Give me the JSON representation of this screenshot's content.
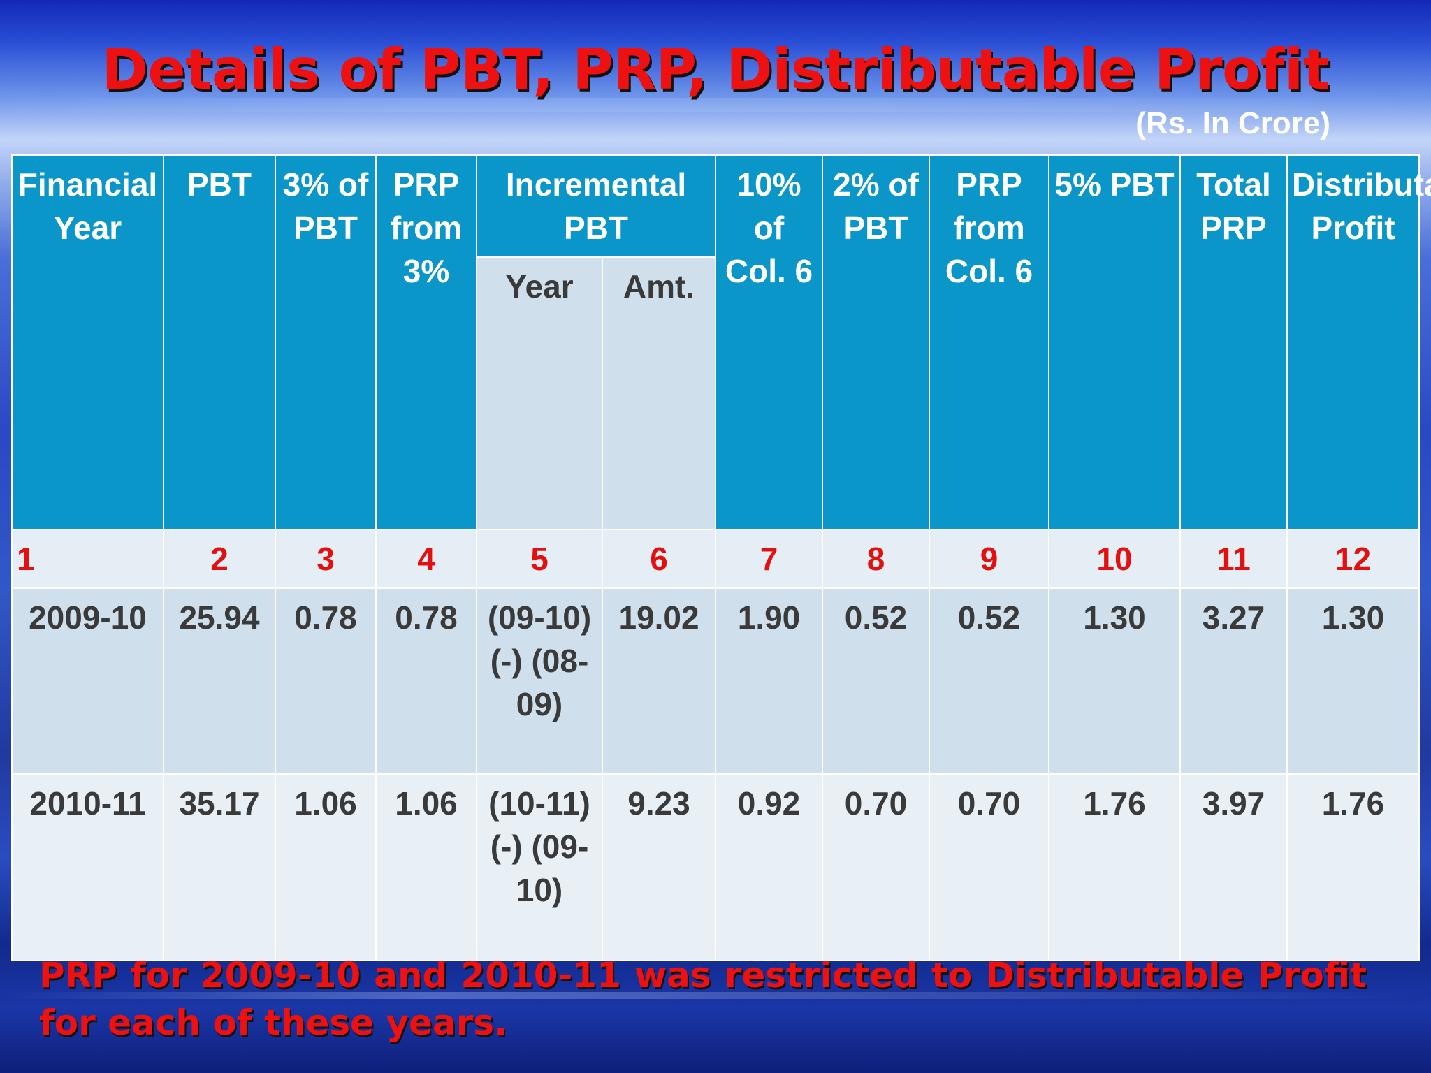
{
  "title": "Details of PBT, PRP, Distributable Profit",
  "unit": "(Rs. In Crore)",
  "table": {
    "headers": {
      "financial_year": "Financial Year",
      "pbt": "PBT",
      "pct3_pbt": "3% of PBT",
      "prp_3pct": "PRP from 3%",
      "incremental_pbt": "Incremental PBT",
      "incremental_year": "Year",
      "incremental_amt": "Amt.",
      "pct10_col6": "10% of Col. 6",
      "pct2_pbt": "2% of PBT",
      "prp_col6": "PRP from Col. 6",
      "pct5_pbt": "5% PBT",
      "total_prp": "Total PRP",
      "distributable_profit": "Distributable Profit"
    },
    "column_numbers": [
      "1",
      "2",
      "3",
      "4",
      "5",
      "6",
      "7",
      "8",
      "9",
      "10",
      "11",
      "12"
    ],
    "rows": [
      {
        "financial_year": "2009-10",
        "pbt": "25.94",
        "pct3_pbt": "0.78",
        "prp_3pct": "0.78",
        "incremental_year": "(09-10) (-) (08-09)",
        "incremental_amt": "19.02",
        "pct10_col6": "1.90",
        "pct2_pbt": "0.52",
        "prp_col6": "0.52",
        "pct5_pbt": "1.30",
        "total_prp": "3.27",
        "distributable_profit": "1.30"
      },
      {
        "financial_year": "2010-11",
        "pbt": "35.17",
        "pct3_pbt": "1.06",
        "prp_3pct": "1.06",
        "incremental_year": "(10-11) (-) (09-10)",
        "incremental_amt": "9.23",
        "pct10_col6": "0.92",
        "pct2_pbt": "0.70",
        "prp_col6": "0.70",
        "pct5_pbt": "1.76",
        "total_prp": "3.97",
        "distributable_profit": "1.76"
      }
    ]
  },
  "note": "PRP for 2009-10 and 2010-11 was restricted to Distributable Profit for each of these years.",
  "colors": {
    "title": "#ee1111",
    "header_bg": "#0a96c8",
    "number_row_text": "#e41010",
    "row_text": "#3a3a3a"
  }
}
